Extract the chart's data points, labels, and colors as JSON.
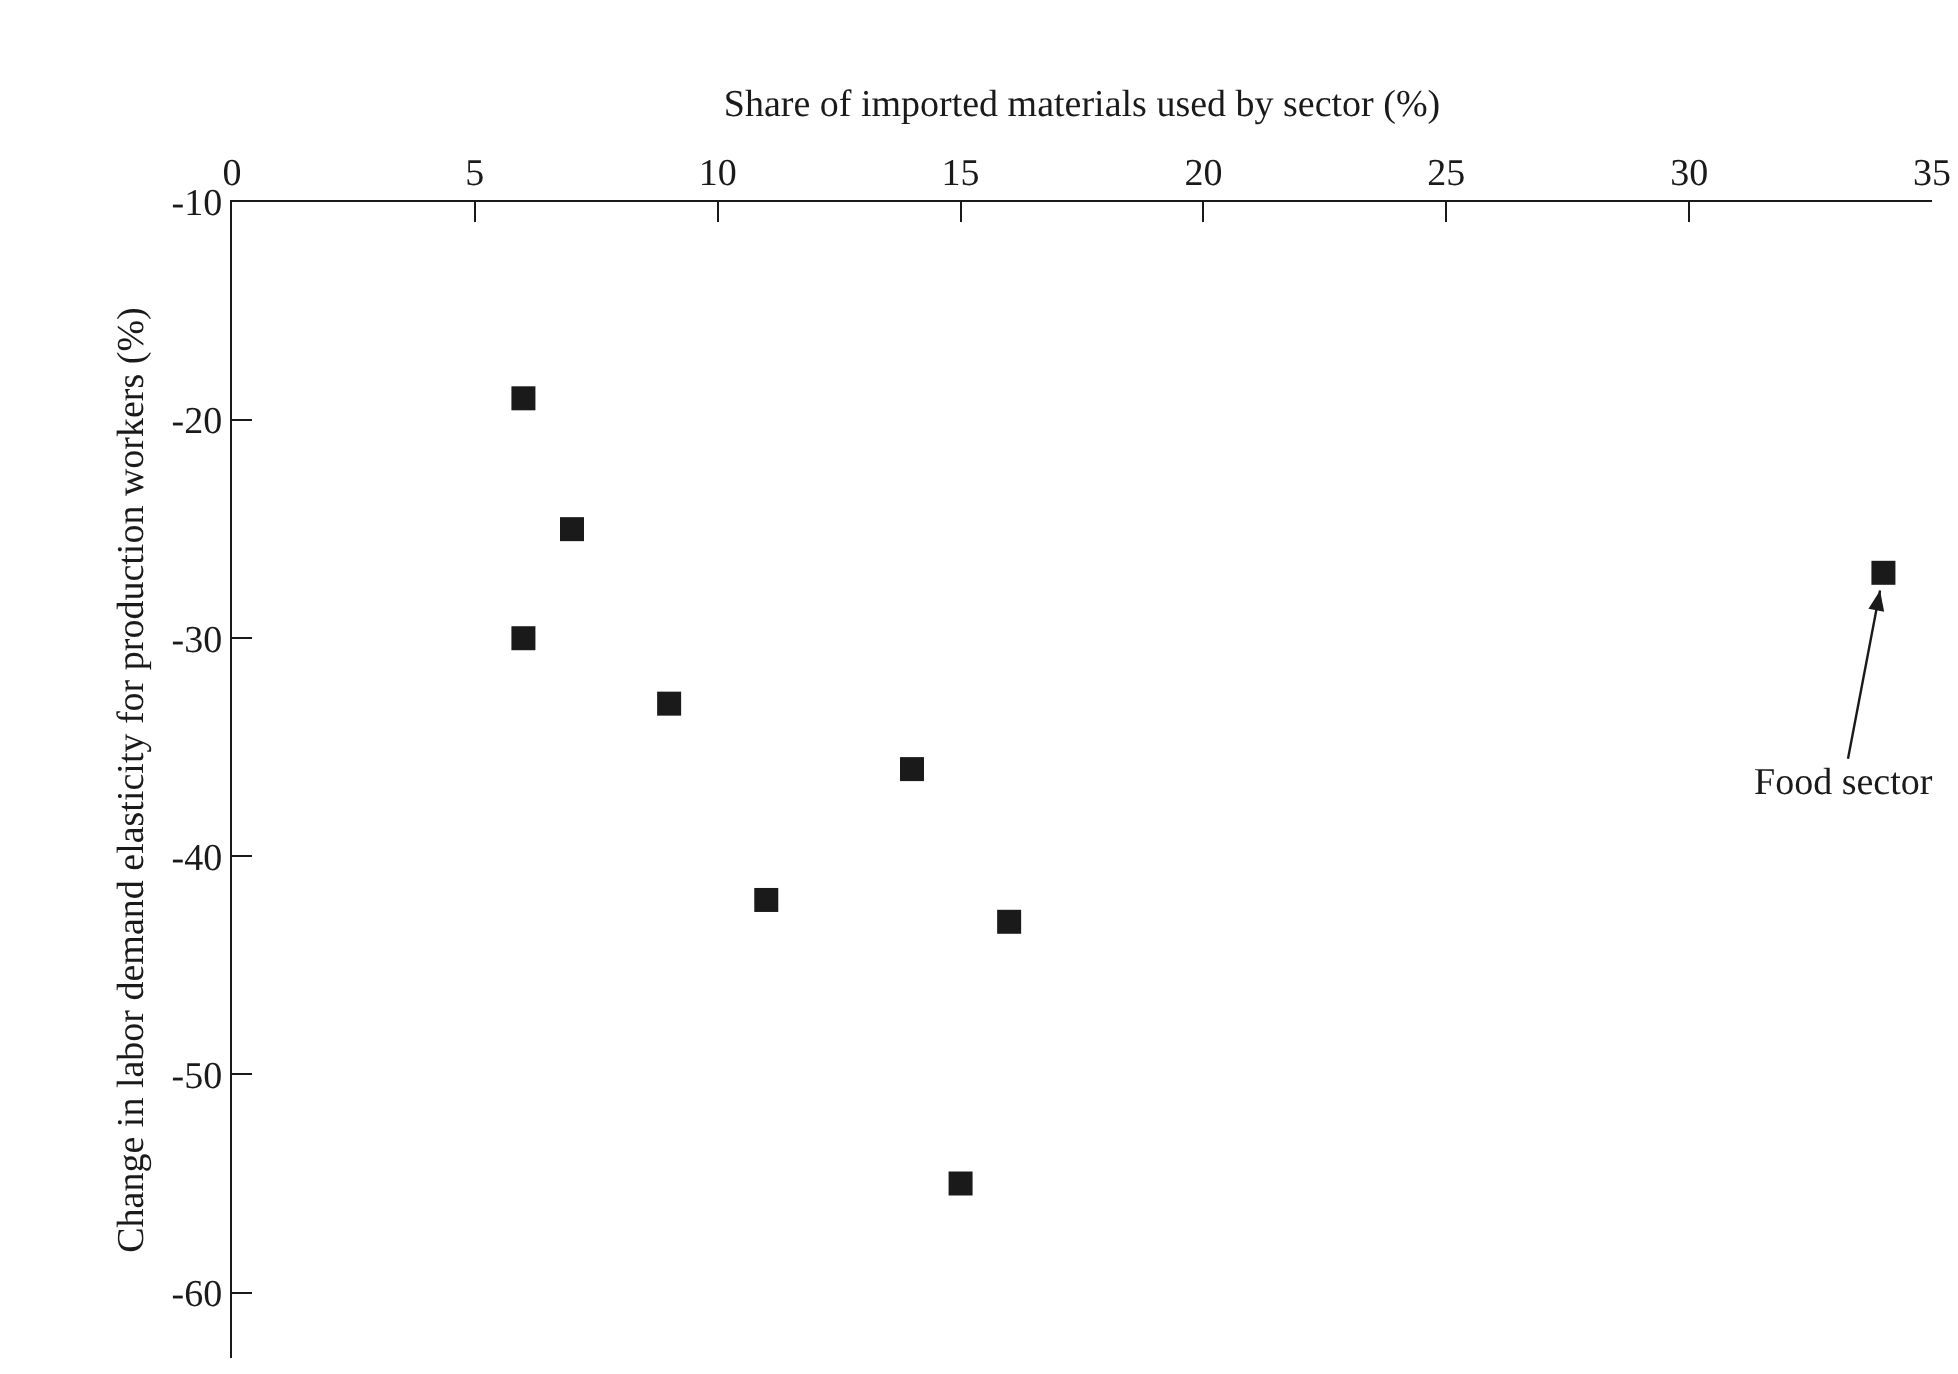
{
  "chart_data": {
    "type": "scatter",
    "xlabel": "Share of imported materials used by sector (%)",
    "ylabel": "Change in labor demand elasticity for production workers (%)",
    "x": [
      6,
      7,
      6,
      9,
      14,
      11,
      16,
      15,
      34
    ],
    "values": [
      -19,
      -25,
      -30,
      -33,
      -36,
      -42,
      -43,
      -55,
      -27
    ],
    "color": "#1a1a1a",
    "marker": "square",
    "grid": false,
    "xlim": [
      0,
      35
    ],
    "xticks": [
      0,
      5,
      10,
      15,
      20,
      25,
      30,
      35
    ],
    "ylim": [
      -63,
      -10
    ],
    "yticks": [
      -10,
      -20,
      -30,
      -40,
      -50,
      -60
    ],
    "annotations": [
      {
        "text": "Food sector",
        "x": 34,
        "y": -27
      }
    ]
  }
}
